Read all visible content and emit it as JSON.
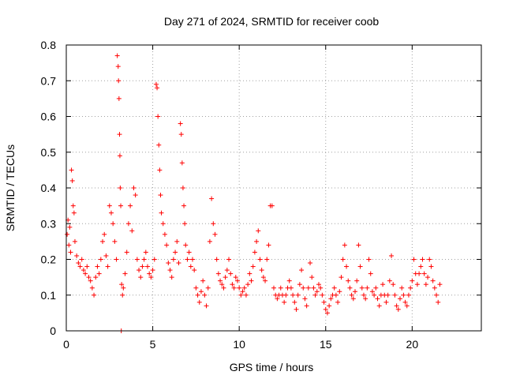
{
  "chart_data": {
    "type": "scatter",
    "title": "Day 271 of 2024, SRMTID for receiver coob",
    "xlabel": "GPS time / hours",
    "ylabel": "SRMTID / TECUs",
    "xlim": [
      0,
      24
    ],
    "ylim": [
      0,
      0.8
    ],
    "x_ticks": [
      0,
      5,
      10,
      15,
      20
    ],
    "x_tick_labels": [
      "0",
      "5",
      "10",
      "15",
      "20"
    ],
    "y_ticks": [
      0,
      0.1,
      0.2,
      0.3,
      0.4,
      0.5,
      0.6,
      0.7,
      0.8
    ],
    "y_tick_labels": [
      "0",
      "0.1",
      "0.2",
      "0.3",
      "0.4",
      "0.5",
      "0.6",
      "0.7",
      "0.8"
    ],
    "grid": true,
    "marker": "+",
    "color": "#ff0000",
    "series": [
      {
        "name": "SRMTID",
        "points": [
          [
            0.05,
            0.27
          ],
          [
            0.1,
            0.31
          ],
          [
            0.15,
            0.24
          ],
          [
            0.2,
            0.29
          ],
          [
            0.25,
            0.22
          ],
          [
            0.3,
            0.45
          ],
          [
            0.35,
            0.42
          ],
          [
            0.4,
            0.35
          ],
          [
            0.45,
            0.33
          ],
          [
            0.5,
            0.25
          ],
          [
            0.6,
            0.21
          ],
          [
            0.7,
            0.19
          ],
          [
            0.8,
            0.18
          ],
          [
            0.9,
            0.2
          ],
          [
            1.0,
            0.17
          ],
          [
            1.1,
            0.16
          ],
          [
            1.2,
            0.18
          ],
          [
            1.3,
            0.15
          ],
          [
            1.4,
            0.14
          ],
          [
            1.5,
            0.12
          ],
          [
            1.6,
            0.1
          ],
          [
            1.7,
            0.15
          ],
          [
            1.8,
            0.18
          ],
          [
            1.9,
            0.16
          ],
          [
            2.0,
            0.2
          ],
          [
            2.1,
            0.25
          ],
          [
            2.2,
            0.27
          ],
          [
            2.3,
            0.21
          ],
          [
            2.4,
            0.18
          ],
          [
            2.5,
            0.35
          ],
          [
            2.6,
            0.33
          ],
          [
            2.7,
            0.3
          ],
          [
            2.8,
            0.25
          ],
          [
            2.9,
            0.2
          ],
          [
            2.95,
            0.77
          ],
          [
            3.0,
            0.74
          ],
          [
            3.02,
            0.7
          ],
          [
            3.05,
            0.65
          ],
          [
            3.08,
            0.55
          ],
          [
            3.1,
            0.49
          ],
          [
            3.12,
            0.4
          ],
          [
            3.15,
            0.35
          ],
          [
            3.18,
            0.0
          ],
          [
            3.2,
            0.13
          ],
          [
            3.25,
            0.1
          ],
          [
            3.3,
            0.12
          ],
          [
            3.4,
            0.16
          ],
          [
            3.5,
            0.22
          ],
          [
            3.6,
            0.3
          ],
          [
            3.7,
            0.35
          ],
          [
            3.8,
            0.28
          ],
          [
            3.9,
            0.4
          ],
          [
            4.0,
            0.38
          ],
          [
            4.1,
            0.2
          ],
          [
            4.2,
            0.17
          ],
          [
            4.3,
            0.15
          ],
          [
            4.4,
            0.18
          ],
          [
            4.5,
            0.2
          ],
          [
            4.6,
            0.22
          ],
          [
            4.7,
            0.18
          ],
          [
            4.8,
            0.16
          ],
          [
            4.9,
            0.15
          ],
          [
            5.0,
            0.17
          ],
          [
            5.1,
            0.2
          ],
          [
            5.2,
            0.69
          ],
          [
            5.25,
            0.68
          ],
          [
            5.3,
            0.6
          ],
          [
            5.35,
            0.52
          ],
          [
            5.4,
            0.45
          ],
          [
            5.45,
            0.38
          ],
          [
            5.5,
            0.33
          ],
          [
            5.6,
            0.3
          ],
          [
            5.7,
            0.27
          ],
          [
            5.8,
            0.24
          ],
          [
            5.9,
            0.19
          ],
          [
            6.0,
            0.17
          ],
          [
            6.1,
            0.15
          ],
          [
            6.2,
            0.2
          ],
          [
            6.3,
            0.22
          ],
          [
            6.4,
            0.25
          ],
          [
            6.5,
            0.19
          ],
          [
            6.6,
            0.58
          ],
          [
            6.65,
            0.55
          ],
          [
            6.7,
            0.47
          ],
          [
            6.75,
            0.4
          ],
          [
            6.8,
            0.35
          ],
          [
            6.85,
            0.3
          ],
          [
            6.9,
            0.24
          ],
          [
            7.0,
            0.2
          ],
          [
            7.1,
            0.22
          ],
          [
            7.2,
            0.18
          ],
          [
            7.3,
            0.2
          ],
          [
            7.4,
            0.17
          ],
          [
            7.5,
            0.12
          ],
          [
            7.6,
            0.1
          ],
          [
            7.7,
            0.08
          ],
          [
            7.8,
            0.11
          ],
          [
            7.9,
            0.14
          ],
          [
            8.0,
            0.1
          ],
          [
            8.1,
            0.07
          ],
          [
            8.2,
            0.12
          ],
          [
            8.3,
            0.25
          ],
          [
            8.4,
            0.37
          ],
          [
            8.5,
            0.3
          ],
          [
            8.6,
            0.27
          ],
          [
            8.7,
            0.2
          ],
          [
            8.8,
            0.16
          ],
          [
            8.9,
            0.14
          ],
          [
            9.0,
            0.13
          ],
          [
            9.1,
            0.12
          ],
          [
            9.2,
            0.15
          ],
          [
            9.3,
            0.17
          ],
          [
            9.4,
            0.2
          ],
          [
            9.5,
            0.16
          ],
          [
            9.6,
            0.13
          ],
          [
            9.7,
            0.12
          ],
          [
            9.8,
            0.15
          ],
          [
            9.9,
            0.14
          ],
          [
            10.0,
            0.12
          ],
          [
            10.1,
            0.1
          ],
          [
            10.2,
            0.11
          ],
          [
            10.3,
            0.12
          ],
          [
            10.4,
            0.1
          ],
          [
            10.5,
            0.13
          ],
          [
            10.6,
            0.16
          ],
          [
            10.7,
            0.14
          ],
          [
            10.8,
            0.18
          ],
          [
            10.9,
            0.22
          ],
          [
            11.0,
            0.25
          ],
          [
            11.1,
            0.28
          ],
          [
            11.2,
            0.2
          ],
          [
            11.3,
            0.17
          ],
          [
            11.4,
            0.15
          ],
          [
            11.5,
            0.14
          ],
          [
            11.6,
            0.2
          ],
          [
            11.7,
            0.24
          ],
          [
            11.8,
            0.35
          ],
          [
            11.9,
            0.35
          ],
          [
            12.0,
            0.12
          ],
          [
            12.1,
            0.1
          ],
          [
            12.2,
            0.09
          ],
          [
            12.3,
            0.1
          ],
          [
            12.4,
            0.12
          ],
          [
            12.5,
            0.1
          ],
          [
            12.6,
            0.08
          ],
          [
            12.7,
            0.1
          ],
          [
            12.8,
            0.12
          ],
          [
            12.9,
            0.14
          ],
          [
            13.0,
            0.12
          ],
          [
            13.1,
            0.1
          ],
          [
            13.2,
            0.08
          ],
          [
            13.3,
            0.06
          ],
          [
            13.4,
            0.1
          ],
          [
            13.5,
            0.13
          ],
          [
            13.6,
            0.17
          ],
          [
            13.7,
            0.12
          ],
          [
            13.8,
            0.09
          ],
          [
            13.9,
            0.07
          ],
          [
            14.0,
            0.12
          ],
          [
            14.1,
            0.19
          ],
          [
            14.2,
            0.15
          ],
          [
            14.3,
            0.12
          ],
          [
            14.4,
            0.1
          ],
          [
            14.5,
            0.11
          ],
          [
            14.6,
            0.13
          ],
          [
            14.7,
            0.12
          ],
          [
            14.8,
            0.1
          ],
          [
            14.9,
            0.08
          ],
          [
            15.0,
            0.06
          ],
          [
            15.1,
            0.05
          ],
          [
            15.2,
            0.07
          ],
          [
            15.3,
            0.09
          ],
          [
            15.4,
            0.1
          ],
          [
            15.5,
            0.12
          ],
          [
            15.6,
            0.1
          ],
          [
            15.7,
            0.08
          ],
          [
            15.8,
            0.11
          ],
          [
            15.9,
            0.15
          ],
          [
            16.0,
            0.2
          ],
          [
            16.1,
            0.24
          ],
          [
            16.2,
            0.18
          ],
          [
            16.3,
            0.14
          ],
          [
            16.4,
            0.12
          ],
          [
            16.5,
            0.1
          ],
          [
            16.6,
            0.09
          ],
          [
            16.7,
            0.11
          ],
          [
            16.8,
            0.14
          ],
          [
            16.9,
            0.24
          ],
          [
            17.0,
            0.18
          ],
          [
            17.1,
            0.12
          ],
          [
            17.2,
            0.1
          ],
          [
            17.3,
            0.09
          ],
          [
            17.4,
            0.12
          ],
          [
            17.5,
            0.2
          ],
          [
            17.6,
            0.16
          ],
          [
            17.7,
            0.11
          ],
          [
            17.8,
            0.1
          ],
          [
            17.9,
            0.12
          ],
          [
            18.0,
            0.09
          ],
          [
            18.1,
            0.07
          ],
          [
            18.2,
            0.1
          ],
          [
            18.3,
            0.13
          ],
          [
            18.4,
            0.1
          ],
          [
            18.5,
            0.08
          ],
          [
            18.6,
            0.1
          ],
          [
            18.7,
            0.14
          ],
          [
            18.8,
            0.21
          ],
          [
            18.9,
            0.13
          ],
          [
            19.0,
            0.1
          ],
          [
            19.1,
            0.07
          ],
          [
            19.2,
            0.06
          ],
          [
            19.3,
            0.09
          ],
          [
            19.4,
            0.12
          ],
          [
            19.5,
            0.1
          ],
          [
            19.6,
            0.08
          ],
          [
            19.7,
            0.07
          ],
          [
            19.8,
            0.1
          ],
          [
            19.9,
            0.12
          ],
          [
            20.0,
            0.14
          ],
          [
            20.1,
            0.2
          ],
          [
            20.2,
            0.16
          ],
          [
            20.3,
            0.13
          ],
          [
            20.4,
            0.16
          ],
          [
            20.5,
            0.18
          ],
          [
            20.6,
            0.2
          ],
          [
            20.7,
            0.16
          ],
          [
            20.8,
            0.13
          ],
          [
            20.9,
            0.15
          ],
          [
            21.0,
            0.2
          ],
          [
            21.1,
            0.18
          ],
          [
            21.2,
            0.14
          ],
          [
            21.3,
            0.12
          ],
          [
            21.4,
            0.1
          ],
          [
            21.5,
            0.08
          ],
          [
            21.6,
            0.13
          ]
        ]
      }
    ]
  }
}
